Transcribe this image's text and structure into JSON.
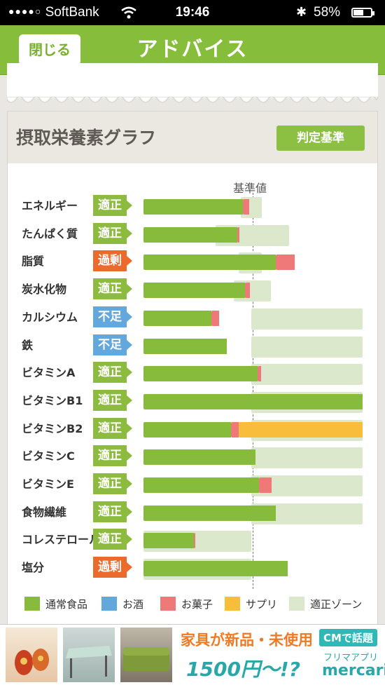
{
  "status_bar": {
    "carrier": "SoftBank",
    "signal_dots": "●●●●○",
    "time": "19:46",
    "battery_percent": "58%",
    "battery_level": 0.58
  },
  "nav": {
    "close_label": "閉じる",
    "title": "アドバイス"
  },
  "graph": {
    "title": "摂取栄養素グラフ",
    "criteria_button": "判定基準",
    "reference_label": "基準値",
    "scale_note": "values in % of reference value (reference = 100)",
    "rows": [
      {
        "name": "エネルギー",
        "status": "適正",
        "status_type": "ok",
        "zone": [
          90,
          110
        ],
        "normal": 92,
        "sweets": 6,
        "supplement": 0
      },
      {
        "name": "たんぱく質",
        "status": "適正",
        "status_type": "ok",
        "zone": [
          67,
          135
        ],
        "normal": 87,
        "sweets": 2,
        "supplement": 0
      },
      {
        "name": "脂質",
        "status": "過剰",
        "status_type": "over",
        "zone": [
          88,
          110
        ],
        "normal": 123,
        "sweets": 17,
        "supplement": 0
      },
      {
        "name": "炭水化物",
        "status": "適正",
        "status_type": "ok",
        "zone": [
          84,
          118
        ],
        "normal": 94,
        "sweets": 5,
        "supplement": 0
      },
      {
        "name": "カルシウム",
        "status": "不足",
        "status_type": "low",
        "zone": [
          100,
          203
        ],
        "normal": 63,
        "sweets": 7,
        "supplement": 0
      },
      {
        "name": "鉄",
        "status": "不足",
        "status_type": "low",
        "zone": [
          100,
          203
        ],
        "normal": 77,
        "sweets": 0,
        "supplement": 0
      },
      {
        "name": "ビタミンA",
        "status": "適正",
        "status_type": "ok",
        "zone": [
          100,
          203
        ],
        "normal": 106,
        "sweets": 3,
        "supplement": 0
      },
      {
        "name": "ビタミンB1",
        "status": "適正",
        "status_type": "ok",
        "zone": [
          100,
          203
        ],
        "normal": 203,
        "sweets": 0,
        "supplement": 0
      },
      {
        "name": "ビタミンB2",
        "status": "適正",
        "status_type": "ok",
        "zone": [
          100,
          203
        ],
        "normal": 81,
        "sweets": 7,
        "supplement": 115
      },
      {
        "name": "ビタミンC",
        "status": "適正",
        "status_type": "ok",
        "zone": [
          100,
          203
        ],
        "normal": 104,
        "sweets": 0,
        "supplement": 0
      },
      {
        "name": "ビタミンE",
        "status": "適正",
        "status_type": "ok",
        "zone": [
          100,
          203
        ],
        "normal": 107,
        "sweets": 12,
        "supplement": 0
      },
      {
        "name": "食物繊維",
        "status": "適正",
        "status_type": "ok",
        "zone": [
          100,
          203
        ],
        "normal": 123,
        "sweets": 0,
        "supplement": 0
      },
      {
        "name": "コレステロール",
        "status": "適正",
        "status_type": "ok",
        "zone": [
          0,
          100
        ],
        "normal": 47,
        "sweets": 1,
        "supplement": 0
      },
      {
        "name": "塩分",
        "status": "過剰",
        "status_type": "over",
        "zone": [
          0,
          100
        ],
        "normal": 134,
        "sweets": 0,
        "supplement": 0
      }
    ]
  },
  "legend": [
    {
      "label": "通常食品",
      "color": "#86bb3b"
    },
    {
      "label": "お酒",
      "color": "#62a8dc"
    },
    {
      "label": "お菓子",
      "color": "#ef7979"
    },
    {
      "label": "サプリ",
      "color": "#f8bd3a"
    },
    {
      "label": "適正ゾーン",
      "color": "#dbe8cb"
    }
  ],
  "colors": {
    "brand_green": "#86bd3a",
    "normal": "#86bb3b",
    "sweets": "#ef7979",
    "supplement": "#f8bd3a",
    "zone": "#dbe8cb",
    "status_ok": "#8cbb3f",
    "status_over": "#ec6a2c",
    "status_low": "#62a8dc"
  },
  "ad": {
    "headline": "家具が新品・未使用",
    "cm_badge": "CMで話題",
    "price": "1500円～!?",
    "app_label": "フリマアプリ",
    "brand": "mercari"
  }
}
